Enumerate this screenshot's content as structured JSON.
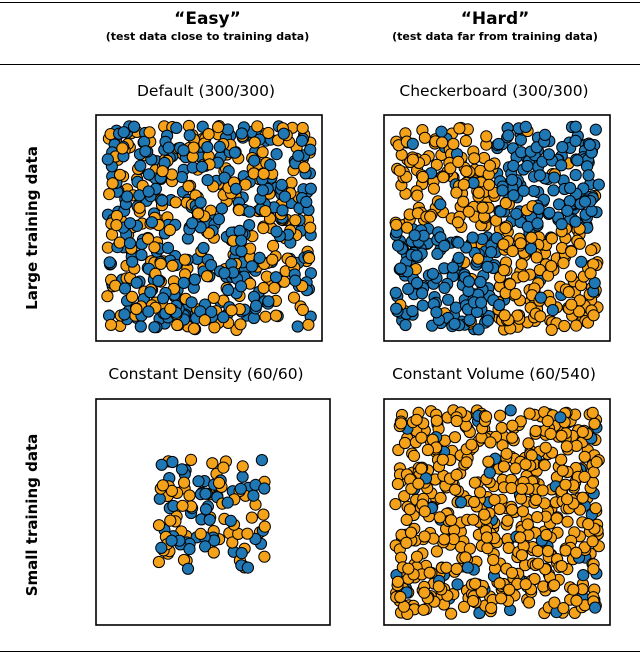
{
  "header": {
    "easy": {
      "title": "“Easy”",
      "subtitle": "(test data close to training data)"
    },
    "hard": {
      "title": "“Hard”",
      "subtitle": "(test data far from training data)"
    }
  },
  "rows": {
    "large": "Large training data",
    "small": "Small training data"
  },
  "colors": {
    "blue": "#1f77b4",
    "orange": "#f5a21b",
    "edge": "#000000"
  },
  "chart_data": [
    {
      "type": "scatter",
      "title": "Default (300/300)",
      "pattern": "uniform-mixed",
      "blue_count": 300,
      "orange_count": 300,
      "grid": false
    },
    {
      "type": "scatter",
      "title": "Checkerboard (300/300)",
      "pattern": "checkerboard",
      "blue_count": 300,
      "orange_count": 300,
      "grid": false
    },
    {
      "type": "scatter",
      "title": "Constant Density (60/60)",
      "pattern": "dense-center",
      "blue_count": 60,
      "orange_count": 60,
      "grid": false
    },
    {
      "type": "scatter",
      "title": "Constant Volume (60/540)",
      "pattern": "uniform-sparse-blue",
      "blue_count": 60,
      "orange_count": 540,
      "grid": false
    }
  ]
}
